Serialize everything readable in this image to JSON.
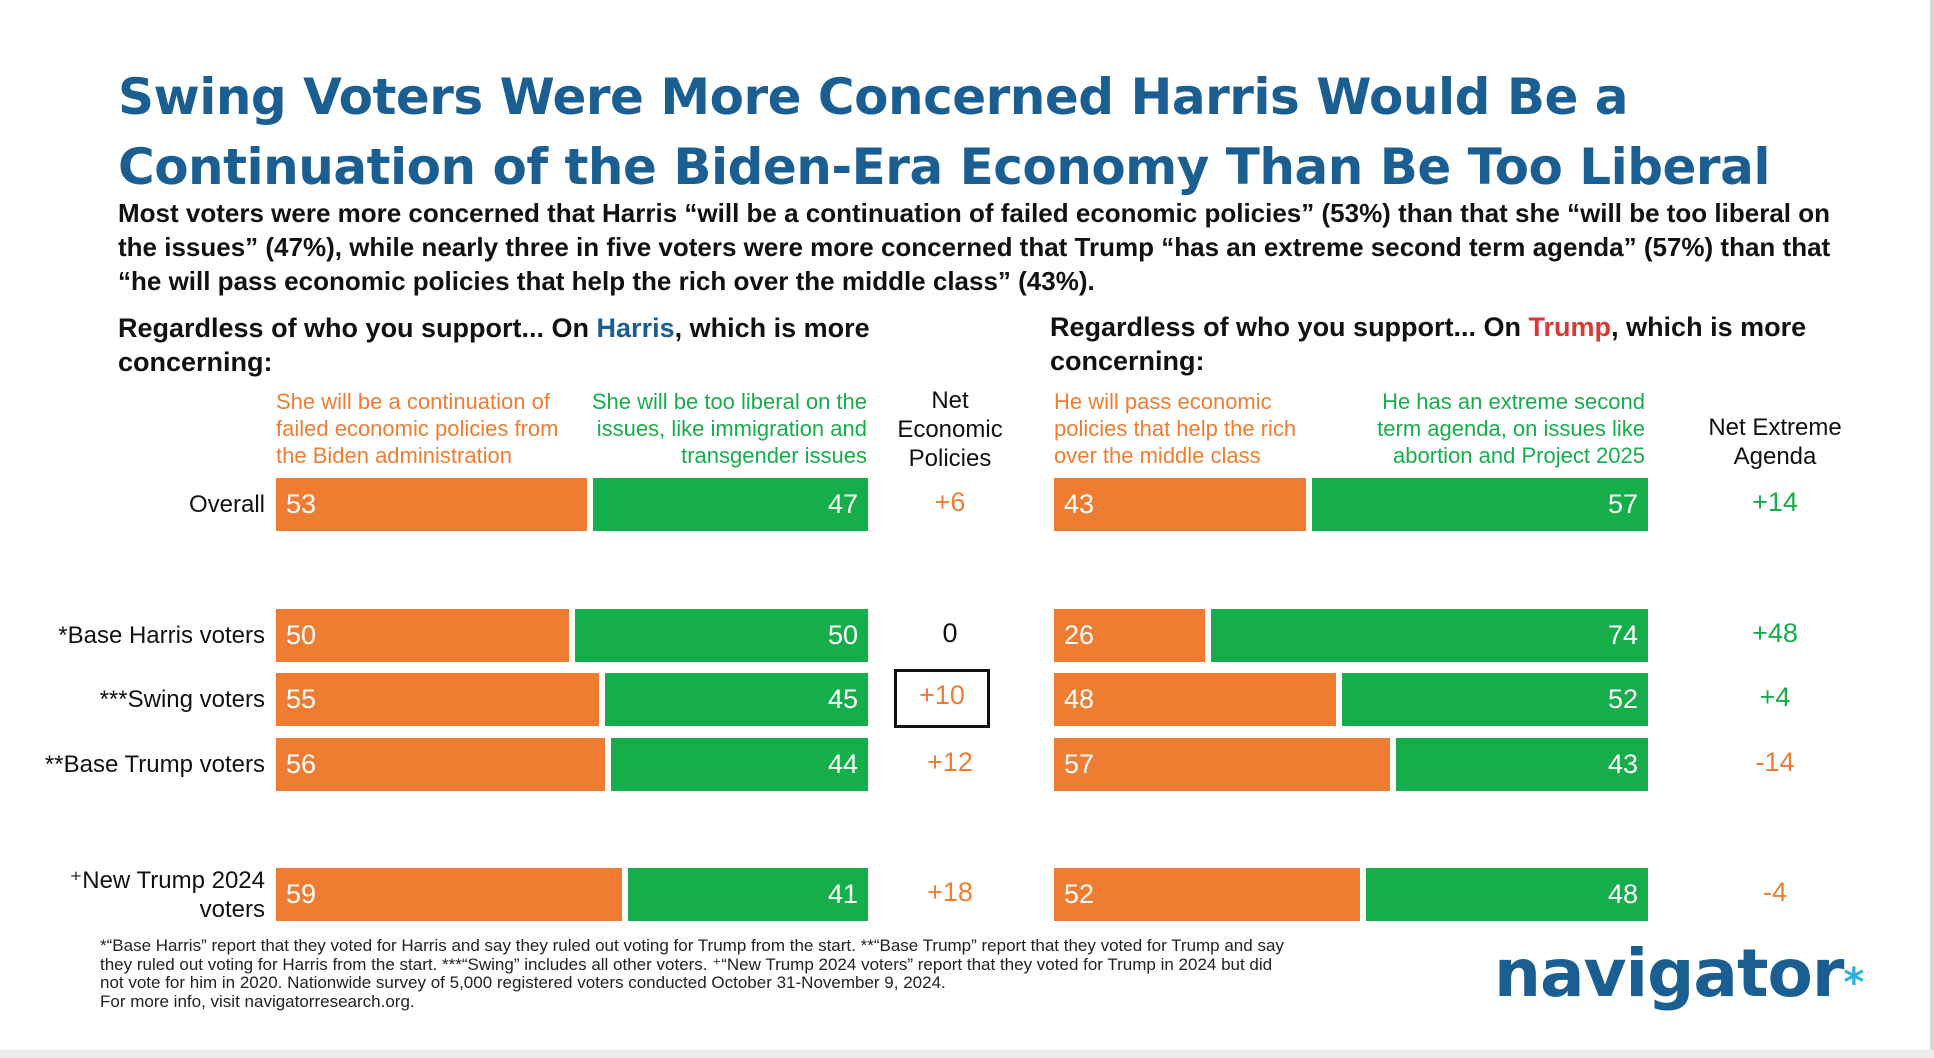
{
  "title_line1": "Swing Voters Were More Concerned Harris Would Be a",
  "title_line2": "Continuation of the Biden-Era Economy Than Be Too Liberal",
  "subtitle_line1": "Most voters were more concerned that Harris “will be a continuation of failed economic policies” (53%) than that she “will be too liberal on",
  "subtitle_line2": "the issues” (47%), while nearly three in five voters were more concerned that Trump “has an extreme second term agenda” (57%) than that",
  "subtitle_line3": "“he will pass economic policies that help the rich over the middle class” (43%).",
  "left_panel": {
    "question_pre": "Regardless of who you support... On ",
    "candidate": "Harris",
    "question_post": ", which is more",
    "question_line2": "concerning:",
    "orange_head": [
      "She will be a continuation of",
      "failed economic policies from",
      "the Biden administration"
    ],
    "green_head": [
      "She will be too liberal on the",
      "issues, like immigration and",
      "transgender issues"
    ],
    "net_head": [
      "Net",
      "Economic",
      "Policies"
    ]
  },
  "right_panel": {
    "question_pre": "Regardless of who you support... On ",
    "candidate": "Trump",
    "question_post": ", which is more",
    "question_line2": "concerning:",
    "orange_head": [
      "He will pass economic",
      "policies that help the rich",
      "over the middle class"
    ],
    "green_head": [
      "He has an extreme second",
      "term agenda, on issues like",
      "abortion and Project 2025"
    ],
    "net_head": [
      "Net Extreme",
      "Agenda"
    ]
  },
  "row_labels": [
    [
      "Overall"
    ],
    [
      "*Base Harris voters"
    ],
    [
      "***Swing voters"
    ],
    [
      "**Base Trump voters"
    ],
    [
      "⁺New Trump 2024",
      "voters"
    ]
  ],
  "chart_data": [
    {
      "type": "bar",
      "stacked": true,
      "orientation": "horizontal",
      "categories": [
        "Overall",
        "*Base Harris voters",
        "***Swing voters",
        "**Base Trump voters",
        "⁺New Trump 2024 voters"
      ],
      "series": [
        {
          "name": "She will be a continuation of failed economic policies from the Biden administration",
          "color": "#ee7d31",
          "values": [
            53,
            50,
            55,
            56,
            59
          ]
        },
        {
          "name": "She will be too liberal on the issues, like immigration and transgender issues",
          "color": "#16ad4b",
          "values": [
            47,
            50,
            45,
            44,
            41
          ]
        }
      ],
      "net_label": "Net Economic Policies",
      "net_values": [
        "+6",
        "0",
        "+10",
        "+12",
        "+18"
      ],
      "net_colors": [
        "#ee7d31",
        "#111111",
        "#ee7d31",
        "#ee7d31",
        "#ee7d31"
      ],
      "highlighted_net_index": 2
    },
    {
      "type": "bar",
      "stacked": true,
      "orientation": "horizontal",
      "categories": [
        "Overall",
        "*Base Harris voters",
        "***Swing voters",
        "**Base Trump voters",
        "⁺New Trump 2024 voters"
      ],
      "series": [
        {
          "name": "He will pass economic policies that help the rich over the middle class",
          "color": "#ee7d31",
          "values": [
            43,
            26,
            48,
            57,
            52
          ]
        },
        {
          "name": "He has an extreme second term agenda, on issues like abortion and Project 2025",
          "color": "#16ad4b",
          "values": [
            57,
            74,
            52,
            43,
            48
          ]
        }
      ],
      "net_label": "Net Extreme Agenda",
      "net_values": [
        "+14",
        "+48",
        "+4",
        "-14",
        "-4"
      ],
      "net_colors": [
        "#16ad4b",
        "#16ad4b",
        "#16ad4b",
        "#ee7d31",
        "#ee7d31"
      ]
    }
  ],
  "footnote": [
    "*“Base Harris” report that they voted for Harris and say they ruled out voting for Trump from the start. **“Base Trump” report that they voted for Trump and say",
    "they ruled out voting for Harris from the start. ***“Swing” includes all other voters. ⁺“New Trump 2024 voters” report that they voted for Trump in 2024 but did",
    "not vote for him in 2020. Nationwide survey of 5,000 registered voters conducted October 31-November 9, 2024.",
    "For more info, visit navigatorresearch.org."
  ],
  "logo": "navigator",
  "logo_mark": "*"
}
